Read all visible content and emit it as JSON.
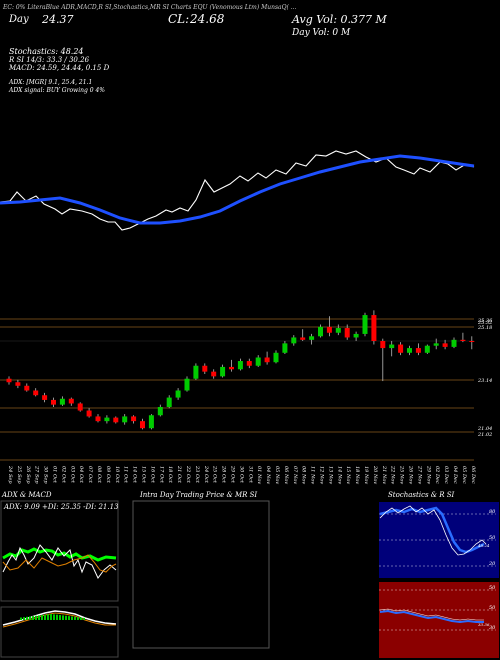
{
  "header": {
    "indicators_line": "EC: 0% LiteraBlue ADR,MACD,R SI,Stochastics,MR SI Charts EQU  (Venomous  Ltm) MunsaQ(  ...",
    "day_label": "Day",
    "day_value": "24.37",
    "close_label": "CL:",
    "close_value": "24.68",
    "avg_vol": "Avg Vol: 0.377 M",
    "day_vol": "Day Vol: 0  M"
  },
  "stats": {
    "stochastics": "Stochastics: 48.24",
    "r_line": "R                              SI 14/3: 33.3 / 30.26",
    "macd": "MACD: 24.59, 24.44, 0.15  D",
    "adx": "ADX:                                      [MGR] 9.1, 25.4, 21.1",
    "adx_signal": "ADX  signal:                             BUY Growing 0 4%"
  },
  "price_levels": [
    "25.32",
    "25.18",
    "23.14",
    "21.04",
    "21.02",
    "25.36"
  ],
  "chart_data": {
    "type": "candlestick",
    "dates": [
      "24 Sep",
      "25 Sep",
      "26 Sep",
      "27 Sep",
      "30 Sep",
      "01 Oct",
      "02 Oct",
      "03 Oct",
      "04 Oct",
      "07 Oct",
      "08 Oct",
      "09 Oct",
      "10 Oct",
      "11 Oct",
      "14 Oct",
      "15 Oct",
      "16 Oct",
      "17 Oct",
      "18 Oct",
      "21 Oct",
      "22 Oct",
      "23 Oct",
      "24 Oct",
      "25 Oct",
      "28 Oct",
      "29 Oct",
      "30 Oct",
      "31 Oct",
      "01 Nov",
      "04 Nov",
      "05 Nov",
      "06 Nov",
      "07 Nov",
      "08 Nov",
      "11 Nov",
      "12 Nov",
      "13 Nov",
      "14 Nov",
      "15 Nov",
      "18 Nov",
      "19 Nov",
      "20 Nov",
      "21 Nov",
      "22 Nov",
      "25 Nov",
      "26 Nov",
      "27 Nov",
      "29 Nov",
      "02 Dec",
      "03 Dec",
      "04 Dec",
      "05 Dec",
      "06 Dec"
    ],
    "ohlc": [
      [
        23.1,
        23.2,
        22.85,
        22.95
      ],
      [
        22.95,
        23.05,
        22.7,
        22.8
      ],
      [
        22.8,
        22.9,
        22.55,
        22.6
      ],
      [
        22.6,
        22.7,
        22.35,
        22.4
      ],
      [
        22.4,
        22.5,
        22.1,
        22.2
      ],
      [
        22.2,
        22.3,
        21.9,
        22.0
      ],
      [
        22.0,
        22.35,
        21.95,
        22.25
      ],
      [
        22.25,
        22.3,
        21.95,
        22.05
      ],
      [
        22.05,
        22.1,
        21.7,
        21.75
      ],
      [
        21.75,
        21.85,
        21.45,
        21.5
      ],
      [
        21.5,
        21.6,
        21.25,
        21.3
      ],
      [
        21.3,
        21.55,
        21.2,
        21.45
      ],
      [
        21.45,
        21.5,
        21.2,
        21.25
      ],
      [
        21.25,
        21.6,
        21.15,
        21.5
      ],
      [
        21.5,
        21.55,
        21.2,
        21.3
      ],
      [
        21.3,
        21.4,
        20.95,
        21.0
      ],
      [
        21.0,
        21.6,
        20.95,
        21.55
      ],
      [
        21.55,
        22.0,
        21.5,
        21.9
      ],
      [
        21.9,
        22.4,
        21.85,
        22.3
      ],
      [
        22.3,
        22.7,
        22.2,
        22.6
      ],
      [
        22.6,
        23.2,
        22.55,
        23.1
      ],
      [
        23.1,
        23.75,
        23.05,
        23.65
      ],
      [
        23.65,
        23.75,
        23.3,
        23.4
      ],
      [
        23.4,
        23.5,
        23.1,
        23.2
      ],
      [
        23.2,
        23.7,
        23.15,
        23.6
      ],
      [
        23.6,
        23.9,
        23.4,
        23.5
      ],
      [
        23.5,
        23.95,
        23.45,
        23.85
      ],
      [
        23.85,
        23.95,
        23.55,
        23.65
      ],
      [
        23.65,
        24.1,
        23.6,
        24.0
      ],
      [
        24.0,
        24.25,
        23.7,
        23.8
      ],
      [
        23.8,
        24.3,
        23.75,
        24.2
      ],
      [
        24.2,
        24.7,
        24.15,
        24.6
      ],
      [
        24.6,
        24.95,
        24.5,
        24.85
      ],
      [
        24.85,
        25.2,
        24.7,
        24.75
      ],
      [
        24.75,
        25.0,
        24.55,
        24.9
      ],
      [
        24.9,
        25.4,
        24.85,
        25.3
      ],
      [
        25.3,
        25.75,
        24.9,
        25.05
      ],
      [
        25.05,
        25.4,
        24.95,
        25.25
      ],
      [
        25.25,
        25.4,
        24.75,
        24.85
      ],
      [
        24.85,
        25.1,
        24.7,
        25.0
      ],
      [
        25.0,
        25.9,
        24.9,
        25.8
      ],
      [
        25.8,
        26.0,
        24.55,
        24.7
      ],
      [
        24.7,
        24.8,
        23.0,
        24.4
      ],
      [
        24.4,
        24.7,
        24.05,
        24.55
      ],
      [
        24.55,
        24.65,
        24.1,
        24.2
      ],
      [
        24.2,
        24.5,
        24.1,
        24.4
      ],
      [
        24.4,
        24.6,
        24.1,
        24.2
      ],
      [
        24.2,
        24.55,
        24.15,
        24.5
      ],
      [
        24.5,
        24.8,
        24.35,
        24.6
      ],
      [
        24.6,
        24.75,
        24.35,
        24.45
      ],
      [
        24.45,
        24.85,
        24.4,
        24.75
      ],
      [
        24.75,
        25.05,
        24.65,
        24.7
      ],
      [
        24.7,
        24.9,
        24.35,
        24.68
      ]
    ],
    "ylim": [
      20.5,
      26.1
    ]
  },
  "panels": {
    "adx_title": "ADX  & MACD",
    "adx_values": "ADX: 9.09  +DI: 25.35  -DI: 21.13",
    "intraday_title": "Intra  Day Trading Price  & MR                          SI",
    "stoch_title": "Stochastics & R                    SI",
    "stoch_ticks": [
      "80",
      "50",
      "20"
    ],
    "rsi_ticks": [
      "50",
      "50",
      "30"
    ],
    "stoch_value": "48.24",
    "rsi_value": "33.36"
  },
  "colors": {
    "up": "#00cc00",
    "down": "#ff0000",
    "sma": "#1e50ff",
    "grid": "#8a5a1e",
    "stoch_bg": "#00007a",
    "rsi_bg": "#8b0000"
  }
}
